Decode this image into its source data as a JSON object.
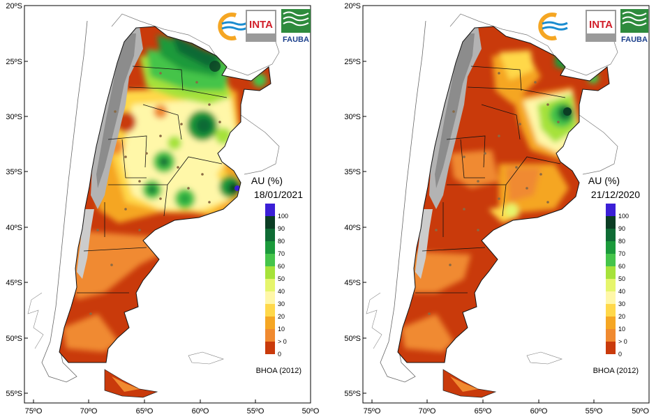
{
  "maps": [
    {
      "title": "AU (%)",
      "date": "18/01/2021",
      "source": "BHOA (2012)"
    },
    {
      "title": "AU (%)",
      "date": "21/12/2020",
      "source": "BHOA (2012)"
    }
  ],
  "lat_ticks": [
    "20ºS",
    "25ºS",
    "30ºS",
    "35ºS",
    "40ºS",
    "45ºS",
    "50ºS",
    "55ºS"
  ],
  "lon_ticks": [
    "75ºO",
    "70ºO",
    "65ºO",
    "60ºO",
    "55ºO",
    "50ºO"
  ],
  "legend": {
    "labels": [
      "100",
      "90",
      "80",
      "70",
      "60",
      "50",
      "40",
      "30",
      "20",
      "10",
      "> 0",
      "0"
    ],
    "colors": [
      "#3b1fd6",
      "#0b3d24",
      "#0f6b34",
      "#1b9a3b",
      "#45c44a",
      "#a6e23a",
      "#e6f56c",
      "#fff7a8",
      "#ffd84a",
      "#f5a623",
      "#f08a30",
      "#c93a0b"
    ]
  },
  "logos": {
    "inta": "INTA",
    "fauba": "FAUBA"
  }
}
